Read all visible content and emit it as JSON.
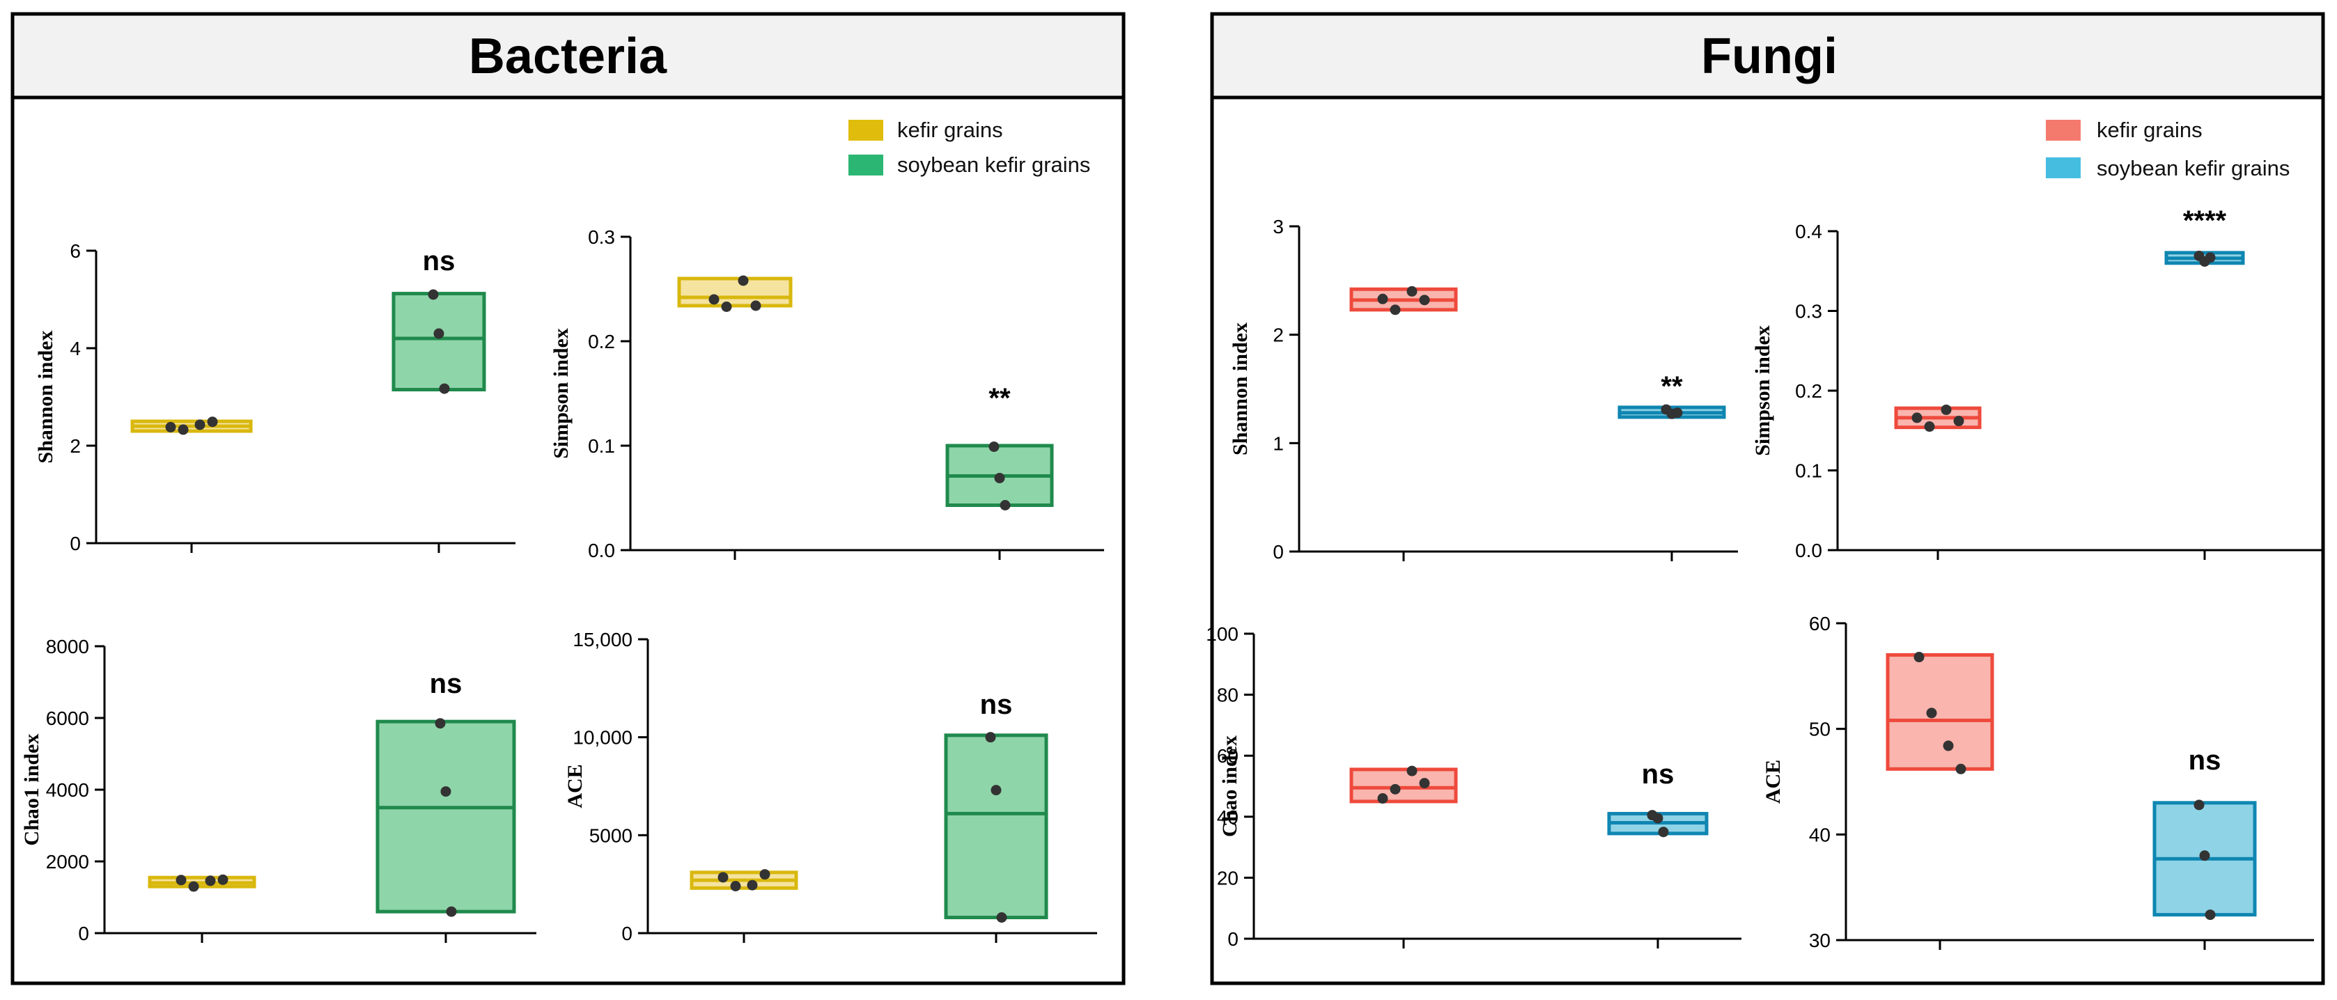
{
  "colors": {
    "bacteria_kefir": "#d9b80e",
    "bacteria_kefir_fill": "#f5e3a0",
    "bacteria_soy": "#1f8a4c",
    "bacteria_soy_fill": "#8fd5aa",
    "fungi_kefir": "#ee4a3c",
    "fungi_kefir_fill": "#f9b5ae",
    "fungi_soy": "#0f86b1",
    "fungi_soy_fill": "#8fd3e6",
    "bacteria_legend_kefir": "#e0bc0c",
    "bacteria_legend_soy": "#2bb673",
    "fungi_legend_kefir": "#f47a6d",
    "fungi_legend_soy": "#45bde0",
    "dot": "#333333",
    "header_bg": "#f2f2f2"
  },
  "panels": [
    {
      "id": "bacteria",
      "title": "Bacteria",
      "legend": [
        {
          "label": "kefir grains",
          "color": "bacteria_legend_kefir"
        },
        {
          "label": "soybean kefir grains",
          "color": "bacteria_legend_soy"
        }
      ]
    },
    {
      "id": "fungi",
      "title": "Fungi",
      "legend": [
        {
          "label": "kefir grains",
          "color": "fungi_legend_kefir"
        },
        {
          "label": "soybean kefir grains",
          "color": "fungi_legend_soy"
        }
      ]
    }
  ],
  "chart_data": [
    {
      "type": "box",
      "panel": "Bacteria",
      "title": "",
      "xlabel": "",
      "ylabel": "Shannon index",
      "ylim": [
        0,
        6
      ],
      "yticks": [
        0,
        2,
        4,
        6
      ],
      "ytick_labels": [
        "0",
        "2",
        "4",
        "6"
      ],
      "significance": "ns",
      "series": [
        {
          "name": "kefir grains",
          "box": [
            2.3,
            2.4,
            2.5
          ],
          "points": [
            2.38,
            2.33,
            2.43,
            2.49
          ],
          "stroke": "bacteria_kefir",
          "fill": "bacteria_kefir_fill"
        },
        {
          "name": "soybean kefir grains",
          "box": [
            3.15,
            4.2,
            5.12
          ],
          "points": [
            5.1,
            4.3,
            3.17
          ],
          "stroke": "bacteria_soy",
          "fill": "bacteria_soy_fill"
        }
      ]
    },
    {
      "type": "box",
      "panel": "Bacteria",
      "title": "",
      "xlabel": "",
      "ylabel": "Simpson index",
      "ylim": [
        0,
        0.3
      ],
      "yticks": [
        0,
        0.1,
        0.2,
        0.3
      ],
      "ytick_labels": [
        "0.0",
        "0.1",
        "0.2",
        "0.3"
      ],
      "significance": "**",
      "series": [
        {
          "name": "kefir grains",
          "box": [
            0.234,
            0.242,
            0.26
          ],
          "points": [
            0.24,
            0.233,
            0.258,
            0.234
          ],
          "stroke": "bacteria_kefir",
          "fill": "bacteria_kefir_fill"
        },
        {
          "name": "soybean kefir grains",
          "box": [
            0.043,
            0.071,
            0.1
          ],
          "points": [
            0.099,
            0.069,
            0.043
          ],
          "stroke": "bacteria_soy",
          "fill": "bacteria_soy_fill"
        }
      ]
    },
    {
      "type": "box",
      "panel": "Bacteria",
      "title": "",
      "xlabel": "",
      "ylabel": "Chao1 index",
      "ylim": [
        0,
        8000
      ],
      "yticks": [
        0,
        2000,
        4000,
        6000,
        8000
      ],
      "ytick_labels": [
        "0",
        "2000",
        "4000",
        "6000",
        "8000"
      ],
      "significance": "ns",
      "series": [
        {
          "name": "kefir grains",
          "box": [
            1300,
            1400,
            1550
          ],
          "points": [
            1480,
            1300,
            1460,
            1490
          ],
          "stroke": "bacteria_kefir",
          "fill": "bacteria_kefir_fill"
        },
        {
          "name": "soybean kefir grains",
          "box": [
            600,
            3500,
            5900
          ],
          "points": [
            5850,
            3950,
            600
          ],
          "stroke": "bacteria_soy",
          "fill": "bacteria_soy_fill"
        }
      ]
    },
    {
      "type": "box",
      "panel": "Bacteria",
      "title": "",
      "xlabel": "",
      "ylabel": "ACE",
      "ylim": [
        0,
        15000
      ],
      "yticks": [
        0,
        5000,
        10000,
        15000
      ],
      "ytick_labels": [
        "0",
        "5000",
        "10,000",
        "15,000"
      ],
      "significance": "ns",
      "series": [
        {
          "name": "kefir grains",
          "box": [
            2300,
            2700,
            3100
          ],
          "points": [
            2850,
            2400,
            2450,
            3000
          ],
          "stroke": "bacteria_kefir",
          "fill": "bacteria_kefir_fill"
        },
        {
          "name": "soybean kefir grains",
          "box": [
            800,
            6100,
            10100
          ],
          "points": [
            10000,
            7300,
            800
          ],
          "stroke": "bacteria_soy",
          "fill": "bacteria_soy_fill"
        }
      ]
    },
    {
      "type": "box",
      "panel": "Fungi",
      "title": "",
      "xlabel": "",
      "ylabel": "Shannon index",
      "ylim": [
        0,
        3
      ],
      "yticks": [
        0,
        1,
        2,
        3
      ],
      "ytick_labels": [
        "0",
        "1",
        "2",
        "3"
      ],
      "significance": "**",
      "series": [
        {
          "name": "kefir grains",
          "box": [
            2.23,
            2.32,
            2.42
          ],
          "points": [
            2.33,
            2.23,
            2.4,
            2.32
          ],
          "stroke": "fungi_kefir",
          "fill": "fungi_kefir_fill"
        },
        {
          "name": "soybean kefir grains",
          "box": [
            1.24,
            1.28,
            1.33
          ],
          "points": [
            1.31,
            1.27,
            1.28
          ],
          "stroke": "fungi_soy",
          "fill": "fungi_soy_fill"
        }
      ]
    },
    {
      "type": "box",
      "panel": "Fungi",
      "title": "",
      "xlabel": "",
      "ylabel": "Simpson index",
      "ylim": [
        0,
        0.4
      ],
      "yticks": [
        0,
        0.1,
        0.2,
        0.3,
        0.4
      ],
      "ytick_labels": [
        "0.0",
        "0.1",
        "0.2",
        "0.3",
        "0.4"
      ],
      "significance": "****",
      "series": [
        {
          "name": "kefir grains",
          "box": [
            0.154,
            0.166,
            0.178
          ],
          "points": [
            0.166,
            0.155,
            0.176,
            0.162
          ],
          "stroke": "fungi_kefir",
          "fill": "fungi_kefir_fill"
        },
        {
          "name": "soybean kefir grains",
          "box": [
            0.36,
            0.366,
            0.373
          ],
          "points": [
            0.369,
            0.362,
            0.367
          ],
          "stroke": "fungi_soy",
          "fill": "fungi_soy_fill"
        }
      ]
    },
    {
      "type": "box",
      "panel": "Fungi",
      "title": "",
      "xlabel": "",
      "ylabel": "Chao index",
      "ylim": [
        0,
        100
      ],
      "yticks": [
        0,
        20,
        40,
        60,
        80,
        100
      ],
      "ytick_labels": [
        "0",
        "20",
        "40",
        "60",
        "80",
        "100"
      ],
      "significance": "ns",
      "series": [
        {
          "name": "kefir grains",
          "box": [
            45,
            49.5,
            55.5
          ],
          "points": [
            46,
            49,
            55,
            51
          ],
          "stroke": "fungi_kefir",
          "fill": "fungi_kefir_fill"
        },
        {
          "name": "soybean kefir grains",
          "box": [
            34.5,
            38,
            41
          ],
          "points": [
            40.5,
            39.5,
            35
          ],
          "stroke": "fungi_soy",
          "fill": "fungi_soy_fill"
        }
      ]
    },
    {
      "type": "box",
      "panel": "Fungi",
      "title": "",
      "xlabel": "",
      "ylabel": "ACE",
      "ylim": [
        30,
        60
      ],
      "yticks": [
        30,
        40,
        50,
        60
      ],
      "ytick_labels": [
        "30",
        "40",
        "50",
        "60"
      ],
      "significance": "ns",
      "series": [
        {
          "name": "kefir grains",
          "box": [
            46.2,
            50.8,
            57
          ],
          "points": [
            56.8,
            51.5,
            48.4,
            46.2
          ],
          "stroke": "fungi_kefir",
          "fill": "fungi_kefir_fill"
        },
        {
          "name": "soybean kefir grains",
          "box": [
            32.4,
            37.7,
            43
          ],
          "points": [
            42.8,
            38,
            32.4
          ],
          "stroke": "fungi_soy",
          "fill": "fungi_soy_fill"
        }
      ]
    }
  ]
}
